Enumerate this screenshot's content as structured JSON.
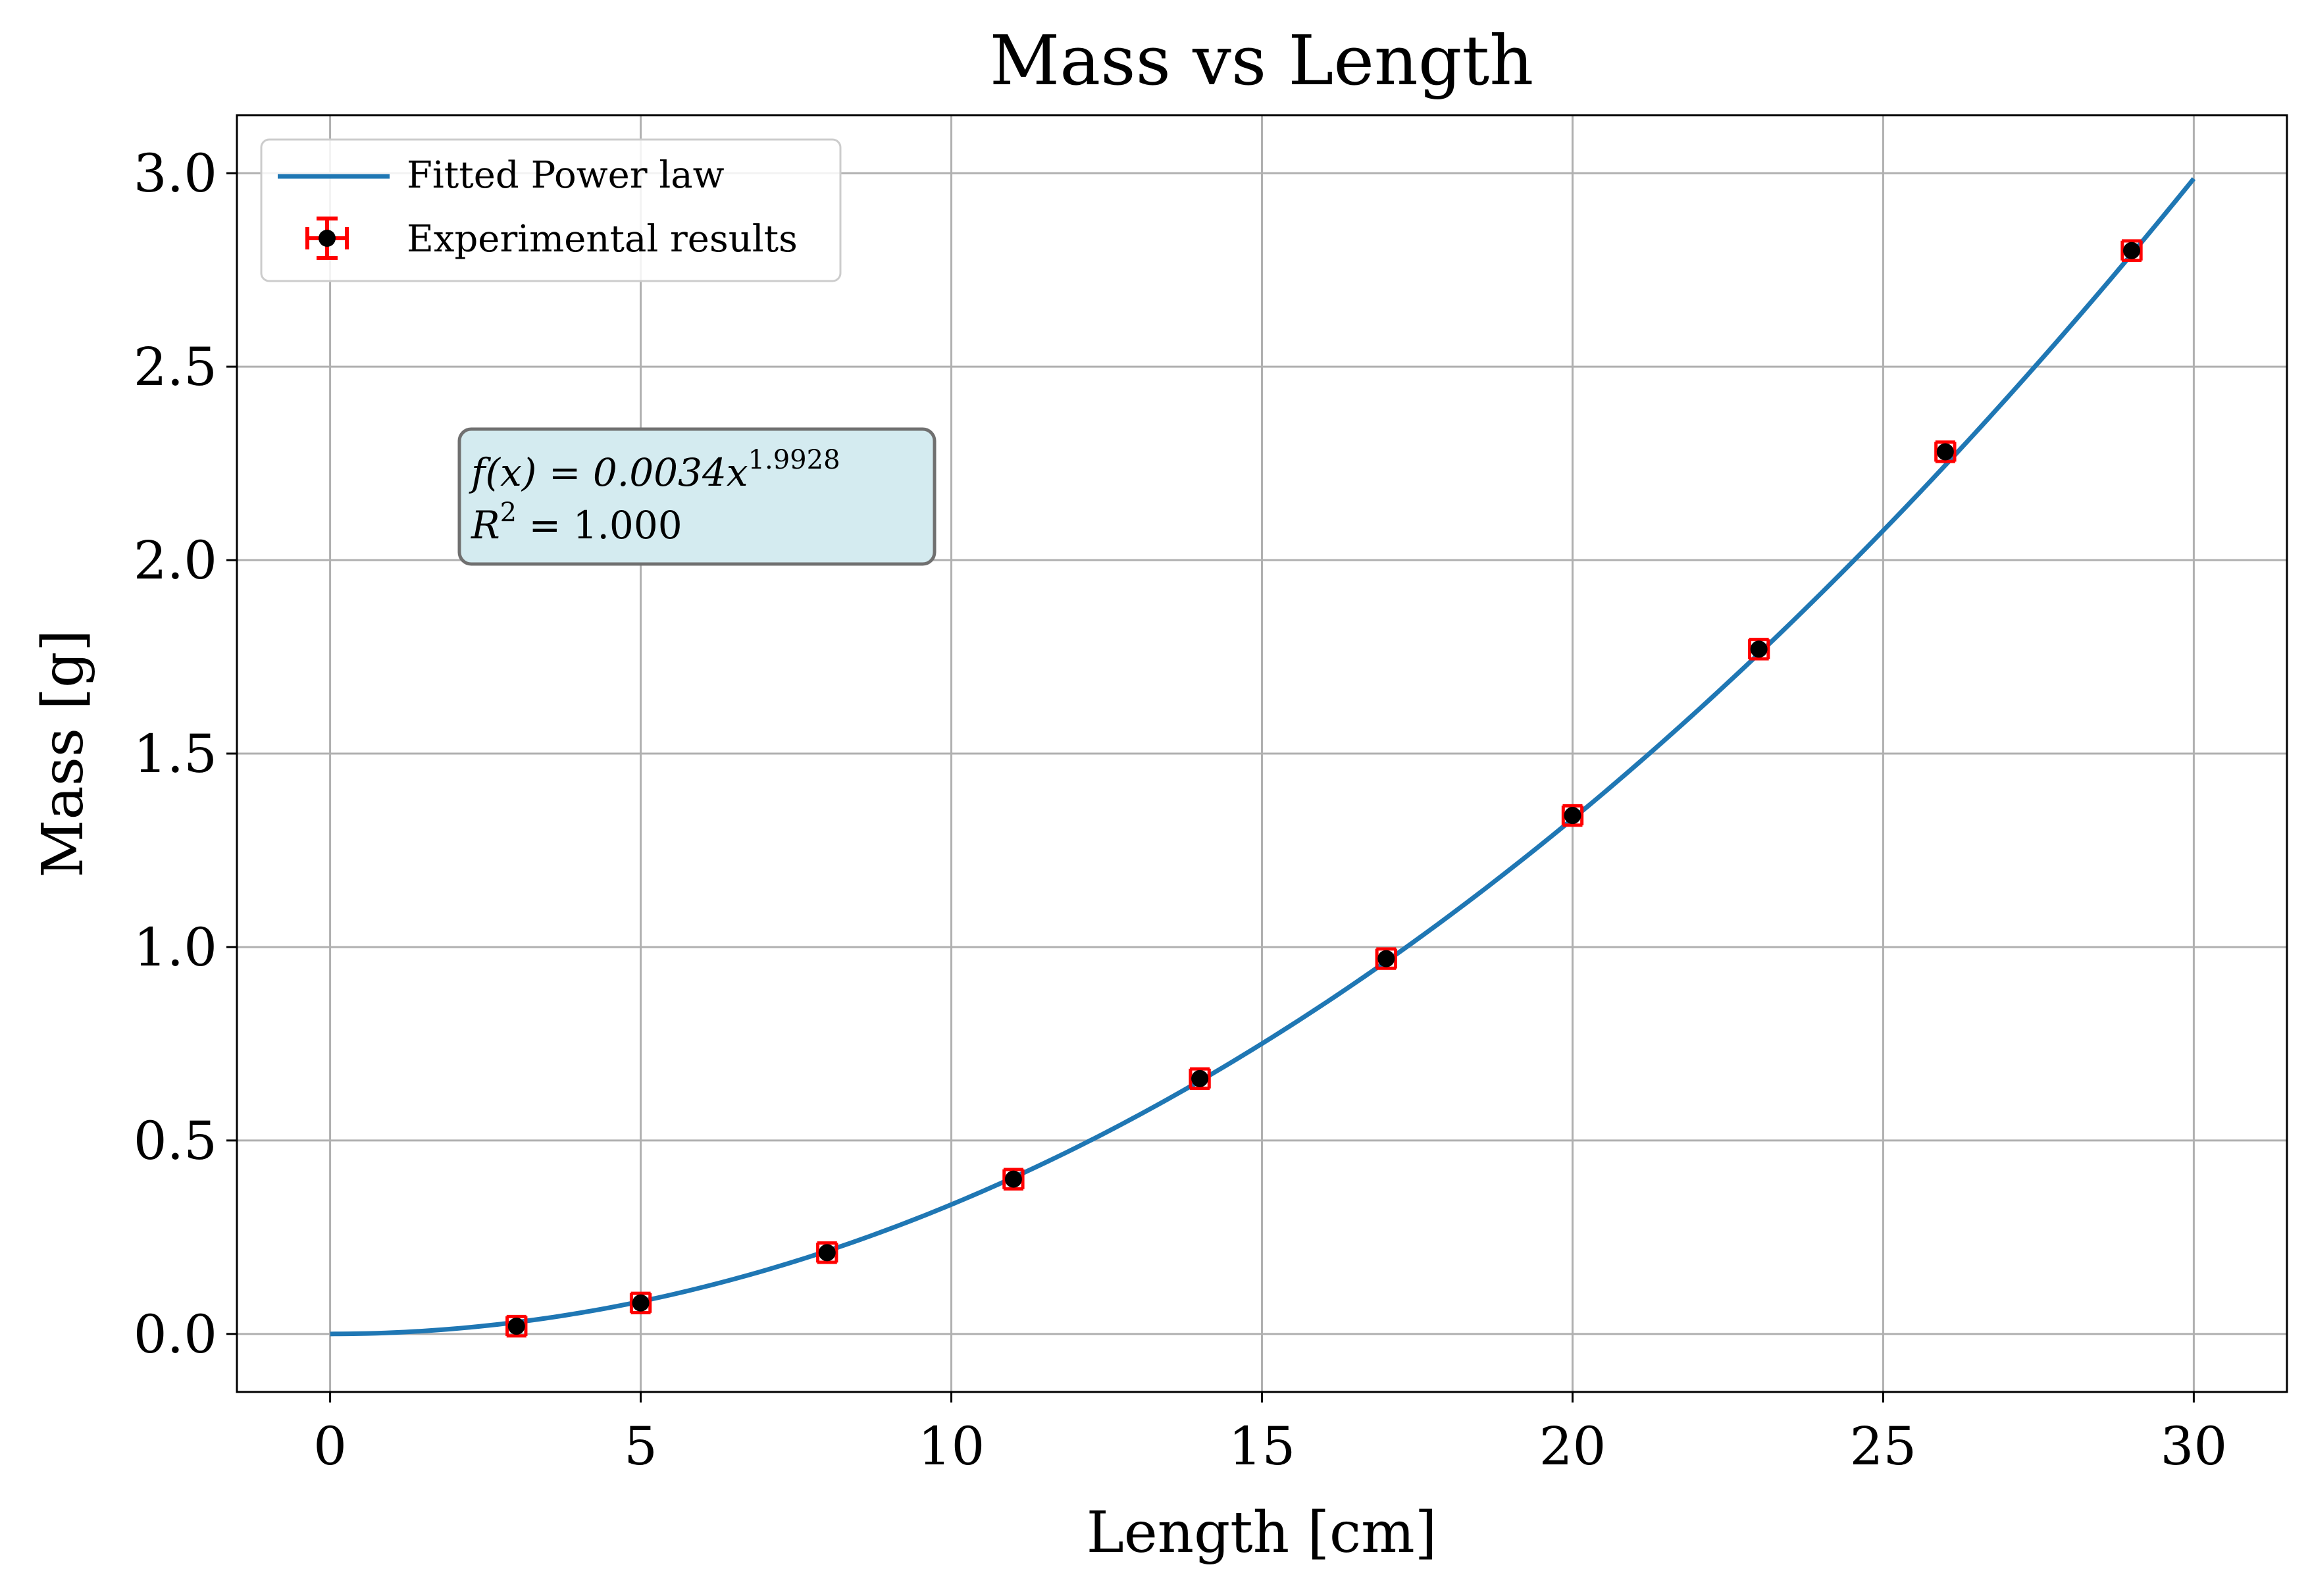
{
  "chart_data": {
    "type": "scatter",
    "title": "Mass vs Length",
    "xlabel": "Length [cm]",
    "ylabel": "Mass [g]",
    "xlim": [
      -1.5,
      31.5
    ],
    "ylim": [
      -0.15,
      3.15
    ],
    "x_ticks": [
      0,
      5,
      10,
      15,
      20,
      25,
      30
    ],
    "y_ticks": [
      0.0,
      0.5,
      1.0,
      1.5,
      2.0,
      2.5,
      3.0
    ],
    "x_tick_labels": [
      "0",
      "5",
      "10",
      "15",
      "20",
      "25",
      "30"
    ],
    "y_tick_labels": [
      "0.0",
      "0.5",
      "1.0",
      "1.5",
      "2.0",
      "2.5",
      "3.0"
    ],
    "grid": true,
    "legend_position": "top-left",
    "fit": {
      "name": "Fitted Power law",
      "coefficient": 0.0034,
      "exponent": 1.9928,
      "x_range": [
        0,
        30
      ],
      "color": "#1f77b4"
    },
    "series": [
      {
        "name": "Experimental results",
        "x": [
          3,
          5,
          8,
          11,
          14,
          17,
          20,
          23,
          26,
          29
        ],
        "y": [
          0.02,
          0.08,
          0.21,
          0.4,
          0.66,
          0.97,
          1.34,
          1.77,
          2.28,
          2.8
        ],
        "x_err": 0.15,
        "y_err": 0.025,
        "marker_color": "#000000",
        "error_color": "#ff0000"
      }
    ],
    "annotation": {
      "line1": "f(x) = 0.0034x",
      "line1_sup": "1.9928",
      "line2": "R",
      "line2_sup": "2",
      "line2_rest": " = 1.000",
      "background": "#d4ebf0",
      "border": "#707070"
    }
  }
}
